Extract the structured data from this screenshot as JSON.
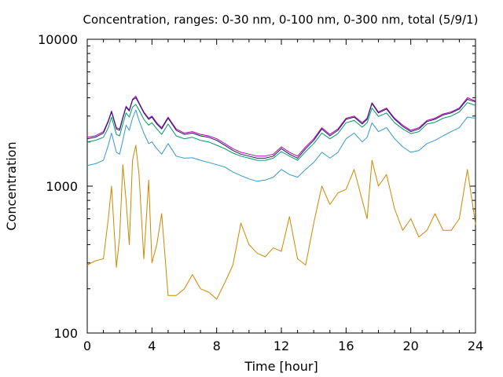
{
  "chart_data": {
    "type": "line",
    "title": "Concentration, ranges: 0-30 nm, 0-100 nm, 0-300 nm, total (5/9/1)",
    "xlabel": "Time [hour]",
    "ylabel": "Concentration",
    "xlim": [
      0,
      24
    ],
    "ylim": [
      100,
      10000
    ],
    "yscale": "log",
    "grid": false,
    "legend": "none",
    "x_ticks": [
      "0",
      "4",
      "8",
      "12",
      "16",
      "20",
      "24"
    ],
    "y_ticks": [
      "100",
      "1000",
      "10000"
    ],
    "x": [
      0,
      0.5,
      1,
      1.3,
      1.5,
      1.8,
      2,
      2.2,
      2.4,
      2.6,
      2.8,
      3,
      3.2,
      3.5,
      3.8,
      4,
      4.3,
      4.6,
      5,
      5.5,
      6,
      6.5,
      7,
      7.5,
      8,
      8.5,
      9,
      9.5,
      10,
      10.5,
      11,
      11.5,
      12,
      12.5,
      13,
      13.5,
      14,
      14.5,
      15,
      15.5,
      16,
      16.5,
      17,
      17.3,
      17.6,
      18,
      18.5,
      19,
      19.5,
      20,
      20.5,
      21,
      21.5,
      22,
      22.5,
      23,
      23.5,
      24
    ],
    "series": [
      {
        "color": "#b300b3",
        "values": [
          2150,
          2200,
          2350,
          2800,
          3250,
          2500,
          2450,
          2950,
          3500,
          3300,
          3900,
          4100,
          3700,
          3200,
          2900,
          3000,
          2700,
          2500,
          2950,
          2450,
          2300,
          2350,
          2250,
          2200,
          2100,
          1950,
          1800,
          1700,
          1650,
          1600,
          1600,
          1650,
          1850,
          1700,
          1600,
          1850,
          2100,
          2500,
          2250,
          2450,
          2900,
          3000,
          2700,
          2900,
          3700,
          3200,
          3400,
          2900,
          2600,
          2400,
          2500,
          2800,
          2900,
          3100,
          3200,
          3400,
          4000,
          3800
        ],
        "stroke_shade": "purple"
      },
      {
        "color": "#1a1a66",
        "values": [
          2100,
          2150,
          2300,
          2750,
          3200,
          2450,
          2400,
          2900,
          3450,
          3250,
          3850,
          4000,
          3650,
          3150,
          2850,
          2950,
          2650,
          2450,
          2900,
          2400,
          2250,
          2300,
          2200,
          2150,
          2050,
          1900,
          1750,
          1650,
          1600,
          1550,
          1550,
          1600,
          1800,
          1650,
          1550,
          1800,
          2050,
          2450,
          2200,
          2400,
          2850,
          2950,
          2650,
          2850,
          3650,
          3150,
          3350,
          2850,
          2550,
          2350,
          2450,
          2750,
          2850,
          3050,
          3150,
          3350,
          3900,
          3750
        ]
      },
      {
        "color": "#009966",
        "values": [
          2000,
          2050,
          2150,
          2500,
          2950,
          2250,
          2200,
          2650,
          3150,
          2950,
          3450,
          3600,
          3300,
          2850,
          2600,
          2700,
          2450,
          2250,
          2650,
          2200,
          2100,
          2150,
          2050,
          2000,
          1900,
          1800,
          1680,
          1600,
          1550,
          1500,
          1500,
          1550,
          1720,
          1600,
          1500,
          1720,
          1950,
          2300,
          2100,
          2280,
          2700,
          2800,
          2520,
          2700,
          3400,
          2980,
          3150,
          2700,
          2450,
          2280,
          2350,
          2650,
          2720,
          2900,
          3000,
          3200,
          3700,
          3550
        ]
      },
      {
        "color": "#3399cc",
        "values": [
          1380,
          1420,
          1500,
          1900,
          2300,
          1700,
          1650,
          2050,
          2600,
          2400,
          2900,
          3300,
          2800,
          2300,
          1950,
          2000,
          1800,
          1650,
          1950,
          1600,
          1550,
          1560,
          1500,
          1450,
          1400,
          1350,
          1250,
          1180,
          1120,
          1080,
          1100,
          1150,
          1300,
          1200,
          1150,
          1300,
          1450,
          1700,
          1550,
          1700,
          2100,
          2300,
          2000,
          2150,
          2700,
          2350,
          2500,
          2100,
          1850,
          1700,
          1750,
          1950,
          2050,
          2200,
          2350,
          2500,
          2950,
          2900
        ]
      },
      {
        "color": "#cc8800",
        "values": [
          290,
          310,
          320,
          600,
          1000,
          280,
          450,
          1400,
          800,
          400,
          1500,
          1900,
          1200,
          320,
          1100,
          300,
          400,
          650,
          180,
          180,
          200,
          250,
          200,
          190,
          170,
          220,
          290,
          560,
          400,
          350,
          330,
          380,
          360,
          620,
          320,
          290,
          560,
          1000,
          750,
          900,
          950,
          1300,
          800,
          600,
          1500,
          1000,
          1200,
          700,
          500,
          600,
          450,
          500,
          650,
          500,
          500,
          600,
          1300,
          550
        ]
      }
    ]
  }
}
